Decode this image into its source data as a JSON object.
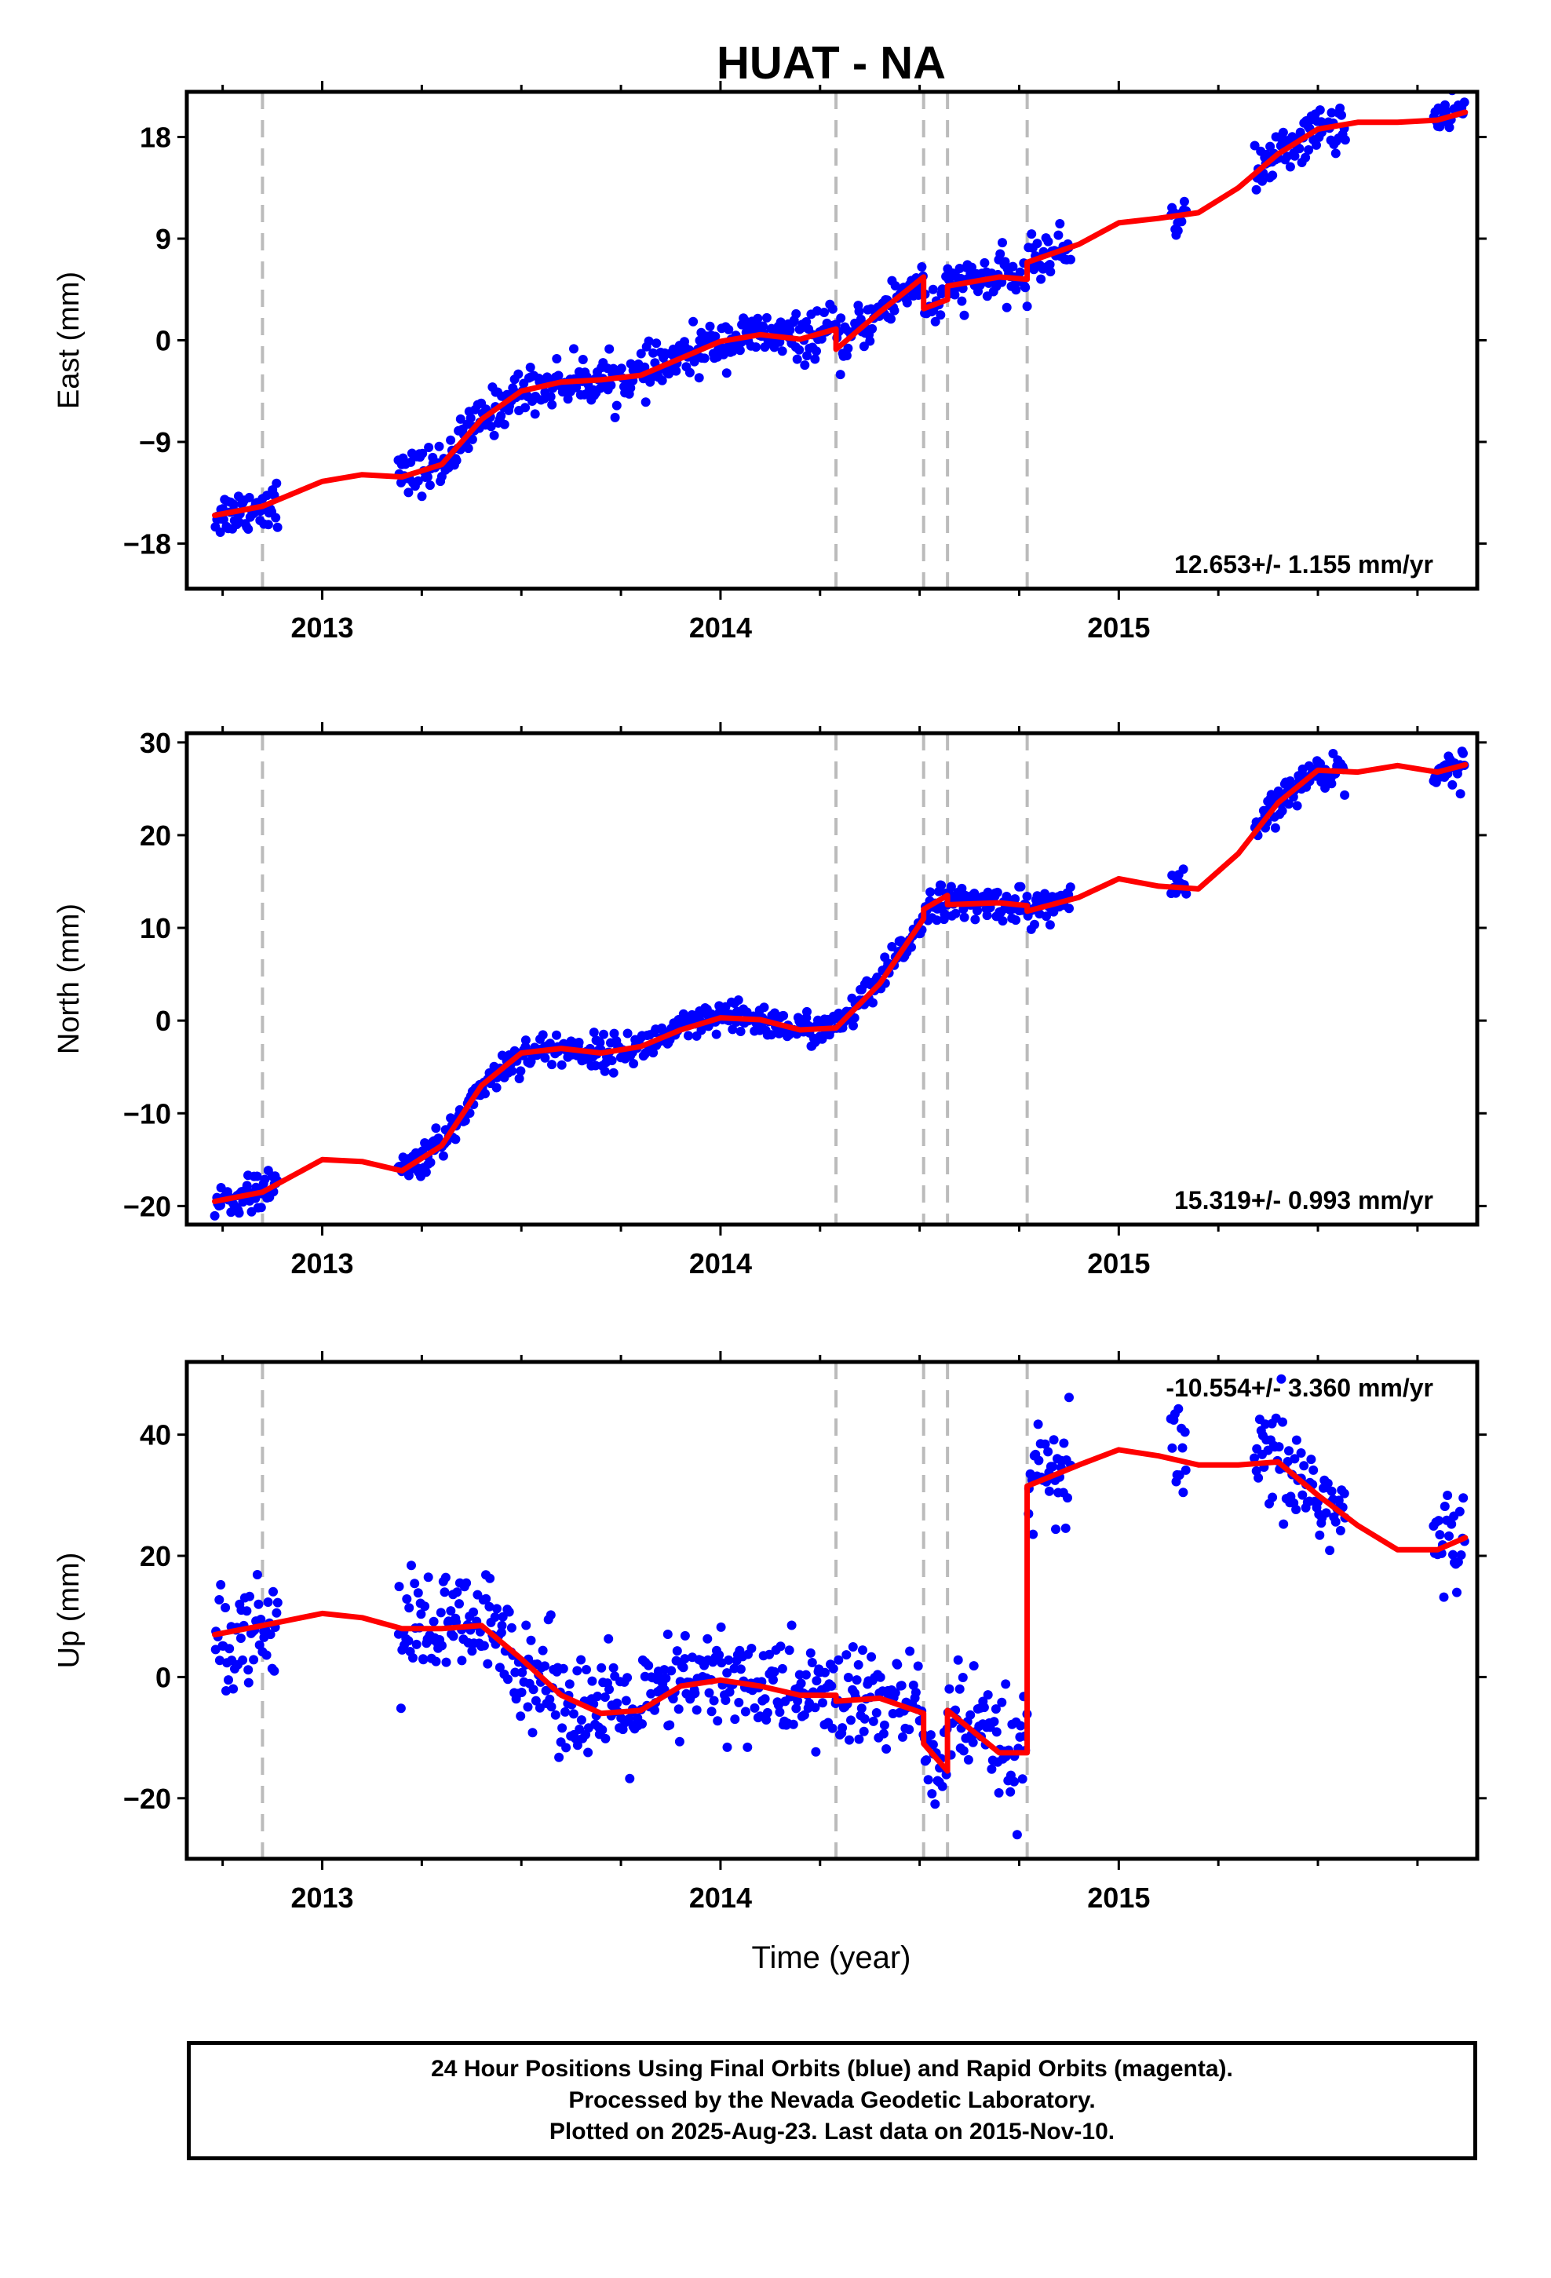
{
  "title": "HUAT - NA",
  "xlabel": "Time (year)",
  "footer": {
    "line1": "24 Hour Positions Using Final Orbits (blue) and Rapid Orbits (magenta).",
    "line2": "Processed by the Nevada Geodetic Laboratory.",
    "line3": "Plotted on 2025-Aug-23. Last data on 2015-Nov-10."
  },
  "chart_data": [
    {
      "type": "scatter",
      "ylabel": "East (mm)",
      "rate_label": "12.653+/- 1.155 mm/yr",
      "xlim": [
        2012.66,
        2015.9
      ],
      "ylim": [
        -22,
        22
      ],
      "x_ticks": [
        2013,
        2014,
        2015
      ],
      "y_ticks": [
        -18,
        -9,
        0,
        9,
        18
      ],
      "y_tick_labels": [
        "−18",
        "−9",
        "0",
        "9",
        "18"
      ],
      "grid": false,
      "colors": {
        "points": "#0000ff",
        "model": "#ff0000",
        "offsets": "#bbbbbb"
      },
      "offset_epochs": [
        2012.85,
        2014.29,
        2014.51,
        2014.57,
        2014.77
      ],
      "data_segments": [
        [
          2012.73,
          2012.89
        ],
        [
          2013.19,
          2014.88
        ],
        [
          2015.13,
          2015.17
        ],
        [
          2015.34,
          2015.57
        ],
        [
          2015.79,
          2015.87
        ]
      ],
      "noise_sd": 1.0,
      "model": [
        [
          2012.73,
          -15.5
        ],
        [
          2012.85,
          -14.7
        ],
        [
          2013.0,
          -12.5
        ],
        [
          2013.1,
          -11.9
        ],
        [
          2013.2,
          -12.1
        ],
        [
          2013.3,
          -11.0
        ],
        [
          2013.4,
          -7.0
        ],
        [
          2013.5,
          -4.5
        ],
        [
          2013.6,
          -3.7
        ],
        [
          2013.7,
          -3.5
        ],
        [
          2013.8,
          -3.1
        ],
        [
          2013.9,
          -1.6
        ],
        [
          2014.0,
          -0.1
        ],
        [
          2014.1,
          0.5
        ],
        [
          2014.2,
          0.1
        ],
        [
          2014.29,
          1.0
        ],
        [
          2014.29,
          -0.8
        ],
        [
          2014.4,
          2.5
        ],
        [
          2014.51,
          5.6
        ],
        [
          2014.51,
          2.8
        ],
        [
          2014.57,
          3.6
        ],
        [
          2014.57,
          4.8
        ],
        [
          2014.7,
          5.6
        ],
        [
          2014.77,
          5.4
        ],
        [
          2014.77,
          6.9
        ],
        [
          2014.9,
          8.5
        ],
        [
          2015.0,
          10.4
        ],
        [
          2015.1,
          10.8
        ],
        [
          2015.2,
          11.3
        ],
        [
          2015.3,
          13.5
        ],
        [
          2015.4,
          16.5
        ],
        [
          2015.5,
          18.7
        ],
        [
          2015.6,
          19.3
        ],
        [
          2015.7,
          19.3
        ],
        [
          2015.8,
          19.5
        ],
        [
          2015.87,
          20.2
        ]
      ]
    },
    {
      "type": "scatter",
      "ylabel": "North (mm)",
      "rate_label": "15.319+/- 0.993 mm/yr",
      "xlim": [
        2012.66,
        2015.9
      ],
      "ylim": [
        -22,
        31
      ],
      "x_ticks": [
        2013,
        2014,
        2015
      ],
      "y_ticks": [
        -20,
        -10,
        0,
        10,
        20,
        30
      ],
      "y_tick_labels": [
        "−20",
        "−10",
        "0",
        "10",
        "20",
        "30"
      ],
      "grid": false,
      "colors": {
        "points": "#0000ff",
        "model": "#ff0000",
        "offsets": "#bbbbbb"
      },
      "offset_epochs": [
        2012.85,
        2014.29,
        2014.51,
        2014.57,
        2014.77
      ],
      "data_segments": [
        [
          2012.73,
          2012.89
        ],
        [
          2013.19,
          2014.88
        ],
        [
          2015.13,
          2015.17
        ],
        [
          2015.34,
          2015.57
        ],
        [
          2015.79,
          2015.87
        ]
      ],
      "noise_sd": 0.9,
      "model": [
        [
          2012.73,
          -19.5
        ],
        [
          2012.85,
          -18.5
        ],
        [
          2013.0,
          -15.0
        ],
        [
          2013.1,
          -15.2
        ],
        [
          2013.2,
          -16.2
        ],
        [
          2013.3,
          -13.5
        ],
        [
          2013.4,
          -7.0
        ],
        [
          2013.5,
          -3.5
        ],
        [
          2013.6,
          -3.0
        ],
        [
          2013.7,
          -3.5
        ],
        [
          2013.8,
          -2.8
        ],
        [
          2013.9,
          -1.0
        ],
        [
          2014.0,
          0.3
        ],
        [
          2014.1,
          0.1
        ],
        [
          2014.2,
          -1.0
        ],
        [
          2014.29,
          -0.8
        ],
        [
          2014.4,
          4.0
        ],
        [
          2014.51,
          11.0
        ],
        [
          2014.51,
          12.0
        ],
        [
          2014.57,
          13.5
        ],
        [
          2014.57,
          12.5
        ],
        [
          2014.7,
          12.7
        ],
        [
          2014.77,
          12.4
        ],
        [
          2014.77,
          11.8
        ],
        [
          2014.9,
          13.3
        ],
        [
          2015.0,
          15.3
        ],
        [
          2015.1,
          14.5
        ],
        [
          2015.2,
          14.2
        ],
        [
          2015.3,
          18.0
        ],
        [
          2015.4,
          23.5
        ],
        [
          2015.5,
          27.0
        ],
        [
          2015.6,
          26.8
        ],
        [
          2015.7,
          27.5
        ],
        [
          2015.8,
          26.8
        ],
        [
          2015.87,
          27.6
        ]
      ]
    },
    {
      "type": "scatter",
      "ylabel": "Up (mm)",
      "rate_label": "-10.554+/- 3.360 mm/yr",
      "xlim": [
        2012.66,
        2015.9
      ],
      "ylim": [
        -30,
        52
      ],
      "x_ticks": [
        2013,
        2014,
        2015
      ],
      "y_ticks": [
        -20,
        0,
        20,
        40
      ],
      "y_tick_labels": [
        "−20",
        "0",
        "20",
        "40"
      ],
      "grid": false,
      "colors": {
        "points": "#0000ff",
        "model": "#ff0000",
        "offsets": "#bbbbbb"
      },
      "offset_epochs": [
        2012.85,
        2014.29,
        2014.51,
        2014.57,
        2014.77
      ],
      "data_segments": [
        [
          2012.73,
          2012.89
        ],
        [
          2013.19,
          2014.88
        ],
        [
          2015.13,
          2015.17
        ],
        [
          2015.34,
          2015.57
        ],
        [
          2015.79,
          2015.87
        ]
      ],
      "noise_sd": 4.5,
      "model": [
        [
          2012.73,
          7.0
        ],
        [
          2012.85,
          8.5
        ],
        [
          2013.0,
          10.5
        ],
        [
          2013.1,
          9.8
        ],
        [
          2013.2,
          8.0
        ],
        [
          2013.3,
          8.0
        ],
        [
          2013.4,
          8.5
        ],
        [
          2013.5,
          3.0
        ],
        [
          2013.6,
          -3.0
        ],
        [
          2013.7,
          -6.0
        ],
        [
          2013.8,
          -5.5
        ],
        [
          2013.9,
          -1.5
        ],
        [
          2014.0,
          -0.5
        ],
        [
          2014.1,
          -1.5
        ],
        [
          2014.2,
          -3.0
        ],
        [
          2014.29,
          -3.0
        ],
        [
          2014.29,
          -4.0
        ],
        [
          2014.4,
          -3.5
        ],
        [
          2014.51,
          -6.0
        ],
        [
          2014.51,
          -11.0
        ],
        [
          2014.57,
          -15.5
        ],
        [
          2014.57,
          -5.5
        ],
        [
          2014.7,
          -12.5
        ],
        [
          2014.77,
          -12.5
        ],
        [
          2014.77,
          31.5
        ],
        [
          2014.9,
          35.0
        ],
        [
          2015.0,
          37.5
        ],
        [
          2015.1,
          36.5
        ],
        [
          2015.2,
          35.0
        ],
        [
          2015.3,
          35.0
        ],
        [
          2015.4,
          35.5
        ],
        [
          2015.5,
          30.0
        ],
        [
          2015.6,
          25.0
        ],
        [
          2015.7,
          21.0
        ],
        [
          2015.8,
          21.0
        ],
        [
          2015.87,
          23.0
        ]
      ]
    }
  ]
}
